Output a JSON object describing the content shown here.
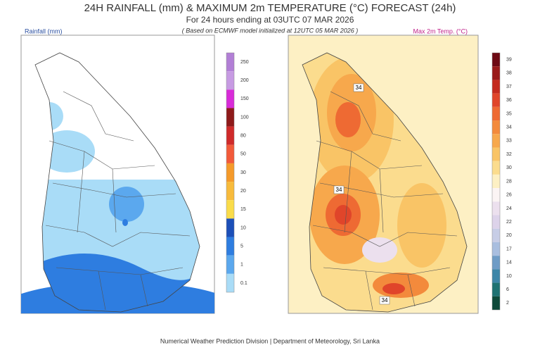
{
  "header": {
    "title": "24H RAINFALL (mm) & MAXIMUM 2m TEMPERATURE (°C) FORECAST (24h)",
    "subtitle": "For 24 hours ending at 03UTC 07 MAR 2026",
    "note": "( Based on ECMWF model initialized at 12UTC 05 MAR 2026 )"
  },
  "rainfall": {
    "label": "Rainfall (mm)",
    "legend": {
      "labels": [
        250,
        200,
        150,
        100,
        80,
        50,
        30,
        20,
        15,
        10,
        5,
        1,
        0.1
      ],
      "colors": [
        "#b27fd6",
        "#c79be3",
        "#d82bd8",
        "#8e1a1a",
        "#cf2a2a",
        "#f25a3a",
        "#f59a2a",
        "#f8bb3c",
        "#fadc4a",
        "#1c4fb8",
        "#2e7de0",
        "#5ba8ee",
        "#a9dcf7"
      ]
    }
  },
  "temperature": {
    "label": "Max 2m Temp. (°C)",
    "contour_labels": [
      "34",
      "34",
      "34"
    ],
    "legend": {
      "labels": [
        39,
        38,
        37,
        36,
        35,
        34,
        33,
        32,
        30,
        28,
        26,
        24,
        22,
        20,
        17,
        14,
        10,
        6,
        2
      ],
      "colors": [
        "#6e0a14",
        "#9a1a1a",
        "#c42a1e",
        "#e0452a",
        "#ee6a33",
        "#f38a3c",
        "#f7a84c",
        "#f9c466",
        "#fbdc8e",
        "#fdf0c4",
        "#fbf4f4",
        "#ece0ee",
        "#ddd3ea",
        "#c7cde6",
        "#a9bedf",
        "#6f9cc6",
        "#3d86a8",
        "#1e7272",
        "#0e4a3a"
      ]
    }
  },
  "footer": "Numerical Weather Prediction Division | Department of Meteorology, Sri Lanka"
}
